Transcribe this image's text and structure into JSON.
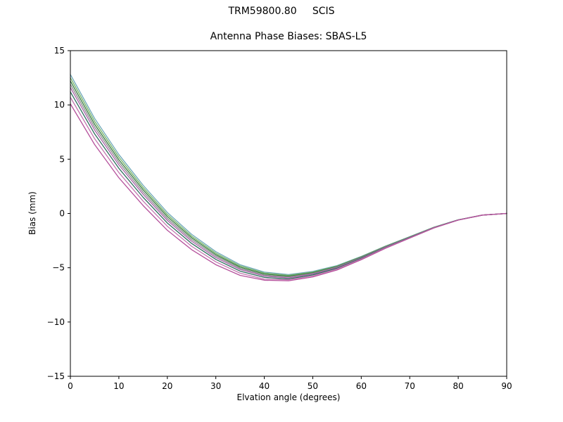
{
  "chart_data": {
    "type": "line",
    "suptitle": "TRM59800.80     SCIS",
    "title": "Antenna Phase Biases: SBAS-L5",
    "xlabel": "Elvation angle (degrees)",
    "ylabel": "Bias (mm)",
    "xlim": [
      0,
      90
    ],
    "ylim": [
      -15,
      15
    ],
    "xticks": [
      0,
      10,
      20,
      30,
      40,
      50,
      60,
      70,
      80,
      90
    ],
    "yticks": [
      -15,
      -10,
      -5,
      0,
      5,
      10,
      15
    ],
    "grid": false,
    "legend": "none",
    "frame": "full-box",
    "background": "#ffffff",
    "x": [
      0,
      5,
      10,
      15,
      20,
      25,
      30,
      35,
      40,
      45,
      50,
      55,
      60,
      65,
      70,
      75,
      80,
      85,
      90
    ],
    "series": [
      {
        "name": "line-1",
        "color": "#6fa8b8",
        "values": [
          12.8,
          8.76,
          5.43,
          2.6,
          0.09,
          -1.92,
          -3.52,
          -4.72,
          -5.4,
          -5.63,
          -5.34,
          -4.8,
          -3.96,
          -3.0,
          -2.14,
          -1.26,
          -0.58,
          -0.15,
          0.0
        ]
      },
      {
        "name": "line-2",
        "color": "#74b266",
        "values": [
          12.5,
          8.49,
          5.19,
          2.39,
          -0.1,
          -2.08,
          -3.66,
          -4.83,
          -5.49,
          -5.7,
          -5.4,
          -4.85,
          -3.99,
          -3.02,
          -2.15,
          -1.27,
          -0.59,
          -0.15,
          0.0
        ]
      },
      {
        "name": "line-3",
        "color": "#3a7d44",
        "values": [
          12.2,
          8.22,
          4.95,
          2.19,
          -0.28,
          -2.23,
          -3.79,
          -4.94,
          -5.58,
          -5.78,
          -5.46,
          -4.89,
          -4.02,
          -3.05,
          -2.17,
          -1.28,
          -0.59,
          -0.15,
          0.0
        ]
      },
      {
        "name": "line-4",
        "color": "#8c8c8c",
        "values": [
          11.9,
          7.96,
          4.72,
          1.98,
          -0.46,
          -2.39,
          -3.92,
          -5.05,
          -5.68,
          -5.85,
          -5.52,
          -4.94,
          -4.06,
          -3.07,
          -2.18,
          -1.29,
          -0.6,
          -0.15,
          0.0
        ]
      },
      {
        "name": "line-5",
        "color": "#a763a8",
        "values": [
          11.6,
          7.69,
          4.48,
          1.77,
          -0.64,
          -2.55,
          -4.06,
          -5.16,
          -5.77,
          -5.93,
          -5.58,
          -4.98,
          -4.09,
          -3.09,
          -2.2,
          -1.3,
          -0.6,
          -0.15,
          0.0
        ]
      },
      {
        "name": "line-6",
        "color": "#2e6e5e",
        "values": [
          11.2,
          7.33,
          4.16,
          1.49,
          -0.88,
          -2.76,
          -4.23,
          -5.31,
          -5.89,
          -6.03,
          -5.66,
          -5.05,
          -4.13,
          -3.12,
          -2.21,
          -1.31,
          -0.6,
          -0.15,
          0.0
        ]
      },
      {
        "name": "line-7",
        "color": "#c278b0",
        "values": [
          10.7,
          6.89,
          3.77,
          1.14,
          -1.18,
          -3.02,
          -4.46,
          -5.5,
          -6.05,
          -6.1,
          -5.76,
          -5.12,
          -4.19,
          -3.16,
          -2.24,
          -1.32,
          -0.61,
          -0.15,
          0.0
        ]
      },
      {
        "name": "line-8",
        "color": "#b5519c",
        "values": [
          10.1,
          6.35,
          3.29,
          0.73,
          -1.55,
          -3.33,
          -4.72,
          -5.7,
          -6.15,
          -6.2,
          -5.85,
          -5.21,
          -4.26,
          -3.21,
          -2.27,
          -1.34,
          -0.61,
          -0.15,
          0.0
        ]
      }
    ]
  }
}
